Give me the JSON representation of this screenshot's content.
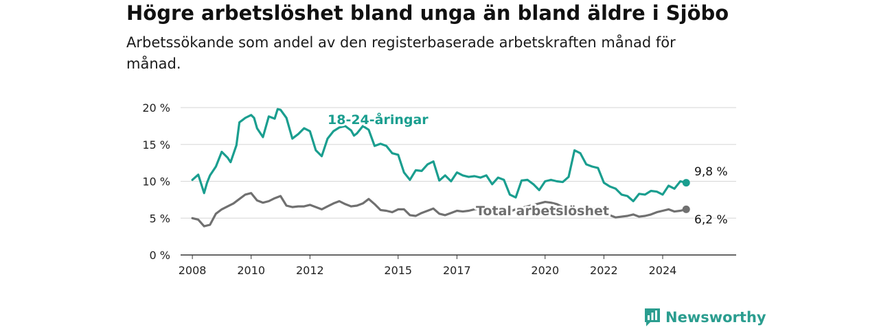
{
  "chart_data": {
    "type": "line",
    "title": "Högre arbetslöshet bland unga än bland äldre i Sjöbo",
    "subtitle": "Arbetssökande som andel av den registerbaserade arbetskraften månad för månad.",
    "ylim": [
      0,
      20
    ],
    "y_ticks": [
      "0 %",
      "5 %",
      "10 %",
      "15 %",
      "20 %"
    ],
    "y_tick_values": [
      0,
      5,
      10,
      15,
      20
    ],
    "x_ticks": [
      "2008",
      "2010",
      "2012",
      "2015",
      "2017",
      "2020",
      "2022",
      "2024"
    ],
    "x_tick_values": [
      2008,
      2010,
      2012,
      2015,
      2017,
      2020,
      2022,
      2024
    ],
    "xlim": [
      2007.6,
      2026.5
    ],
    "grid": true,
    "series": [
      {
        "name": "18-24-åringar",
        "color": "#1a9e8f",
        "end_label": "9,8 %",
        "x": [
          2008.0,
          2008.2,
          2008.4,
          2008.5,
          2008.6,
          2008.8,
          2009.0,
          2009.2,
          2009.3,
          2009.5,
          2009.6,
          2009.7,
          2009.8,
          2010.0,
          2010.1,
          2010.2,
          2010.4,
          2010.6,
          2010.8,
          2010.9,
          2011.0,
          2011.2,
          2011.4,
          2011.6,
          2011.8,
          2012.0,
          2012.2,
          2012.4,
          2012.6,
          2012.8,
          2013.0,
          2013.2,
          2013.4,
          2013.5,
          2013.6,
          2013.8,
          2014.0,
          2014.2,
          2014.4,
          2014.6,
          2014.8,
          2015.0,
          2015.2,
          2015.4,
          2015.6,
          2015.8,
          2016.0,
          2016.2,
          2016.4,
          2016.6,
          2016.8,
          2017.0,
          2017.2,
          2017.4,
          2017.6,
          2017.8,
          2018.0,
          2018.2,
          2018.4,
          2018.6,
          2018.8,
          2019.0,
          2019.2,
          2019.4,
          2019.6,
          2019.8,
          2020.0,
          2020.2,
          2020.4,
          2020.6,
          2020.8,
          2021.0,
          2021.2,
          2021.4,
          2021.6,
          2021.8,
          2022.0,
          2022.2,
          2022.4,
          2022.6,
          2022.8,
          2023.0,
          2023.2,
          2023.4,
          2023.6,
          2023.8,
          2024.0,
          2024.2,
          2024.4,
          2024.6,
          2024.8
        ],
        "values": [
          10.2,
          10.9,
          8.4,
          9.8,
          10.8,
          12.0,
          14.0,
          13.2,
          12.6,
          14.9,
          18.0,
          18.3,
          18.6,
          19.0,
          18.6,
          17.2,
          16.0,
          18.8,
          18.5,
          19.8,
          19.7,
          18.6,
          15.8,
          16.4,
          17.2,
          16.8,
          14.2,
          13.4,
          15.8,
          16.8,
          17.3,
          17.5,
          16.9,
          16.2,
          16.5,
          17.5,
          17.0,
          14.8,
          15.1,
          14.8,
          13.8,
          13.6,
          11.2,
          10.2,
          11.5,
          11.4,
          12.3,
          12.7,
          10.1,
          10.8,
          10.0,
          11.2,
          10.8,
          10.6,
          10.7,
          10.5,
          10.8,
          9.6,
          10.5,
          10.2,
          8.2,
          7.8,
          10.1,
          10.2,
          9.6,
          8.8,
          10.0,
          10.2,
          10.0,
          9.9,
          10.6,
          14.2,
          13.8,
          12.3,
          12.0,
          11.8,
          9.8,
          9.3,
          9.0,
          8.2,
          8.0,
          7.3,
          8.3,
          8.2,
          8.7,
          8.6,
          8.2,
          9.4,
          9.0,
          10.0,
          9.8
        ]
      },
      {
        "name": "Total arbetslöshet",
        "color": "#707070",
        "end_label": "6,2 %",
        "x": [
          2008.0,
          2008.2,
          2008.4,
          2008.5,
          2008.6,
          2008.8,
          2009.0,
          2009.2,
          2009.4,
          2009.6,
          2009.8,
          2010.0,
          2010.2,
          2010.4,
          2010.6,
          2010.8,
          2011.0,
          2011.2,
          2011.4,
          2011.6,
          2011.8,
          2012.0,
          2012.2,
          2012.4,
          2012.6,
          2012.8,
          2013.0,
          2013.2,
          2013.4,
          2013.6,
          2013.8,
          2014.0,
          2014.2,
          2014.4,
          2014.6,
          2014.8,
          2015.0,
          2015.2,
          2015.4,
          2015.6,
          2015.8,
          2016.0,
          2016.2,
          2016.4,
          2016.6,
          2016.8,
          2017.0,
          2017.2,
          2017.4,
          2017.6,
          2017.8,
          2018.0,
          2018.2,
          2018.4,
          2018.6,
          2018.8,
          2019.0,
          2019.2,
          2019.4,
          2019.6,
          2019.8,
          2020.0,
          2020.2,
          2020.4,
          2020.6,
          2020.8,
          2021.0,
          2021.2,
          2021.4,
          2021.6,
          2021.8,
          2022.0,
          2022.2,
          2022.4,
          2022.6,
          2022.8,
          2023.0,
          2023.2,
          2023.4,
          2023.6,
          2023.8,
          2024.0,
          2024.2,
          2024.4,
          2024.6,
          2024.8
        ],
        "values": [
          5.0,
          4.8,
          3.9,
          4.0,
          4.1,
          5.6,
          6.2,
          6.6,
          7.0,
          7.6,
          8.2,
          8.4,
          7.4,
          7.1,
          7.3,
          7.7,
          8.0,
          6.7,
          6.5,
          6.6,
          6.6,
          6.8,
          6.5,
          6.2,
          6.6,
          7.0,
          7.3,
          6.9,
          6.6,
          6.7,
          7.0,
          7.6,
          6.9,
          6.1,
          6.0,
          5.8,
          6.2,
          6.2,
          5.4,
          5.3,
          5.7,
          6.0,
          6.3,
          5.6,
          5.4,
          5.7,
          6.0,
          5.9,
          6.0,
          6.2,
          6.3,
          6.0,
          5.8,
          5.6,
          5.4,
          5.9,
          6.2,
          6.4,
          6.6,
          6.8,
          7.0,
          7.2,
          7.1,
          6.9,
          6.5,
          6.2,
          6.0,
          6.1,
          6.3,
          6.4,
          6.2,
          5.8,
          5.4,
          5.1,
          5.2,
          5.3,
          5.5,
          5.2,
          5.3,
          5.5,
          5.8,
          6.0,
          6.2,
          5.9,
          6.0,
          6.2
        ]
      }
    ]
  },
  "branding": {
    "name": "Newsworthy",
    "logo_icon": "newsworthy-chart-icon",
    "color": "#2a9d8f"
  }
}
